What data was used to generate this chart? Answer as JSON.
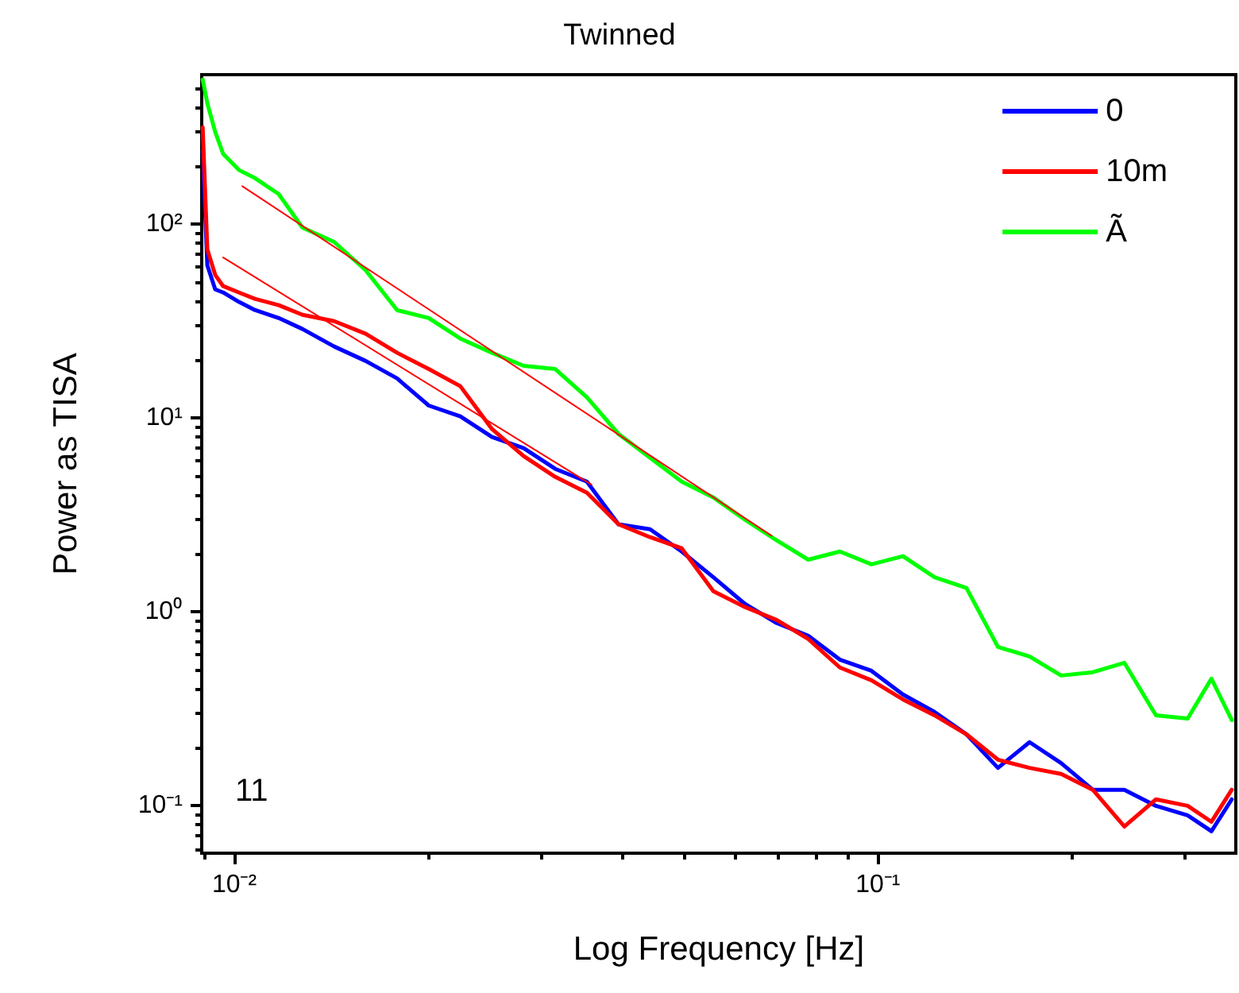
{
  "chart_data": {
    "type": "line",
    "title": "Twinned",
    "xlabel": "Log Frequency [Hz]",
    "ylabel": "Power as TISA",
    "log": "xy",
    "grid": false,
    "legend": "top right",
    "marker": "none",
    "line_style": "solid",
    "xlim": [
      0.0089,
      0.36
    ],
    "ylim": [
      0.057,
      590
    ],
    "xticks": [
      {
        "value": 0.009,
        "label": null
      },
      {
        "value": 0.01,
        "label": "10⁻²"
      },
      {
        "value": 0.02,
        "label": null
      },
      {
        "value": 0.03,
        "label": null
      },
      {
        "value": 0.04,
        "label": null
      },
      {
        "value": 0.05,
        "label": null
      },
      {
        "value": 0.06,
        "label": null
      },
      {
        "value": 0.07,
        "label": null
      },
      {
        "value": 0.08,
        "label": null
      },
      {
        "value": 0.09,
        "label": null
      },
      {
        "value": 0.1,
        "label": "10⁻¹"
      },
      {
        "value": 0.2,
        "label": null
      },
      {
        "value": 0.3,
        "label": null
      }
    ],
    "yticks": [
      {
        "value": 0.06,
        "label": null
      },
      {
        "value": 0.07,
        "label": null
      },
      {
        "value": 0.08,
        "label": null
      },
      {
        "value": 0.09,
        "label": null
      },
      {
        "value": 0.1,
        "label": "10⁻¹"
      },
      {
        "value": 0.2,
        "label": null
      },
      {
        "value": 0.3,
        "label": null
      },
      {
        "value": 0.4,
        "label": null
      },
      {
        "value": 0.5,
        "label": null
      },
      {
        "value": 0.6,
        "label": null
      },
      {
        "value": 0.7,
        "label": null
      },
      {
        "value": 0.8,
        "label": null
      },
      {
        "value": 0.9,
        "label": null
      },
      {
        "value": 1,
        "label": "10⁰"
      },
      {
        "value": 2,
        "label": null
      },
      {
        "value": 3,
        "label": null
      },
      {
        "value": 4,
        "label": null
      },
      {
        "value": 5,
        "label": null
      },
      {
        "value": 6,
        "label": null
      },
      {
        "value": 7,
        "label": null
      },
      {
        "value": 8,
        "label": null
      },
      {
        "value": 9,
        "label": null
      },
      {
        "value": 10,
        "label": "10¹"
      },
      {
        "value": 20,
        "label": null
      },
      {
        "value": 30,
        "label": null
      },
      {
        "value": 40,
        "label": null
      },
      {
        "value": 50,
        "label": null
      },
      {
        "value": 60,
        "label": null
      },
      {
        "value": 70,
        "label": null
      },
      {
        "value": 80,
        "label": null
      },
      {
        "value": 90,
        "label": null
      },
      {
        "value": 100,
        "label": "10²"
      },
      {
        "value": 200,
        "label": null
      },
      {
        "value": 300,
        "label": null
      },
      {
        "value": 400,
        "label": null
      },
      {
        "value": 500,
        "label": null
      }
    ],
    "annotations": [
      "11"
    ],
    "x": [
      0.00893,
      0.00908,
      0.00934,
      0.00961,
      0.01017,
      0.01076,
      0.01172,
      0.01276,
      0.01429,
      0.016,
      0.01791,
      0.02005,
      0.02245,
      0.02515,
      0.02816,
      0.03153,
      0.03531,
      0.03954,
      0.04427,
      0.04957,
      0.05552,
      0.06216,
      0.06961,
      0.07795,
      0.08729,
      0.09775,
      0.1094,
      0.1225,
      0.1373,
      0.1537,
      0.1721,
      0.1927,
      0.2158,
      0.2416,
      0.2705,
      0.303,
      0.3299,
      0.3548
    ],
    "series": [
      {
        "name": "0",
        "color": "#0000ff",
        "values": [
          238,
          61.3,
          46.1,
          44.4,
          39.7,
          36.1,
          32.8,
          28.8,
          23.4,
          19.7,
          16.0,
          11.6,
          10.2,
          7.98,
          6.99,
          5.47,
          4.7,
          2.83,
          2.67,
          2.05,
          1.51,
          1.1,
          0.877,
          0.754,
          0.568,
          0.497,
          0.375,
          0.305,
          0.234,
          0.157,
          0.213,
          0.166,
          0.121,
          0.121,
          0.1,
          0.0893,
          0.074,
          0.108
        ]
      },
      {
        "name": "10m",
        "color": "#ff0000",
        "values": [
          316,
          74,
          54.7,
          47.9,
          44.4,
          41.2,
          38.2,
          34.1,
          31.6,
          27.2,
          21.7,
          17.9,
          14.6,
          8.77,
          6.36,
          4.97,
          4.12,
          2.83,
          2.43,
          2.13,
          1.28,
          1.06,
          0.91,
          0.726,
          0.517,
          0.444,
          0.354,
          0.293,
          0.234,
          0.173,
          0.157,
          0.146,
          0.121,
          0.0782,
          0.108,
          0.1,
          0.0828,
          0.121
        ]
      },
      {
        "name": "Ã",
        "color": "#00ff00",
        "values": [
          557,
          420,
          299,
          230,
          190,
          173,
          143,
          96,
          81,
          57.8,
          36,
          32.8,
          25.7,
          21.7,
          18.6,
          17.9,
          12.8,
          8.28,
          6.24,
          4.7,
          3.89,
          2.99,
          2.34,
          1.86,
          2.05,
          1.76,
          1.94,
          1.51,
          1.33,
          0.66,
          0.589,
          0.47,
          0.489,
          0.547,
          0.293,
          0.282,
          0.453,
          0.277
        ]
      },
      {
        "color": "#ff0000",
        "x": [
          0.01029,
          0.0684
        ],
        "values": [
          157,
          2.47
        ]
      },
      {
        "color": "#ff0000",
        "x": [
          0.00961,
          0.0359
        ],
        "values": [
          67.3,
          4.53
        ]
      }
    ]
  }
}
